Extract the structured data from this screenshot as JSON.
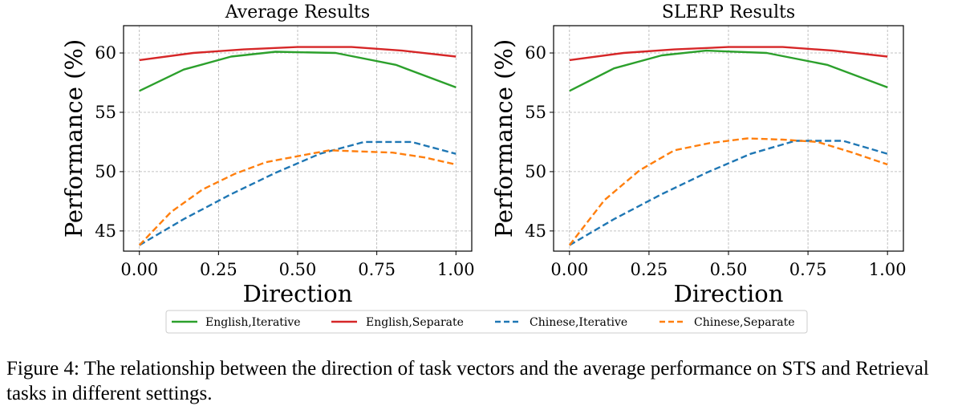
{
  "chart_data": [
    {
      "type": "line",
      "title": "Average Results",
      "xlabel": "Direction",
      "ylabel": "Performance (%)",
      "xlim": [
        -0.05,
        1.05
      ],
      "ylim": [
        43.3,
        62.3
      ],
      "xticks": [
        "0.00",
        "0.25",
        "0.50",
        "0.75",
        "1.00"
      ],
      "yticks": [
        "45",
        "50",
        "55",
        "60"
      ],
      "grid": true,
      "series": [
        {
          "name": "English,Iterative",
          "dash": "solid",
          "x": [
            0,
            0.14,
            0.29,
            0.43,
            0.62,
            0.81,
            1.0
          ],
          "y": [
            56.8,
            58.6,
            59.7,
            60.1,
            60.0,
            59.0,
            57.1
          ]
        },
        {
          "name": "English,Separate",
          "dash": "solid",
          "x": [
            0,
            0.17,
            0.33,
            0.5,
            0.67,
            0.83,
            1.0
          ],
          "y": [
            59.4,
            60.0,
            60.3,
            60.5,
            60.5,
            60.2,
            59.7
          ]
        },
        {
          "name": "Chinese,Iterative",
          "dash": "dashed",
          "x": [
            0,
            0.14,
            0.29,
            0.43,
            0.57,
            0.71,
            0.86,
            1.0
          ],
          "y": [
            43.8,
            46.0,
            48.1,
            49.9,
            51.5,
            52.5,
            52.5,
            51.5
          ]
        },
        {
          "name": "Chinese,Separate",
          "dash": "dashed",
          "x": [
            0,
            0.1,
            0.2,
            0.3,
            0.4,
            0.5,
            0.6,
            0.7,
            0.8,
            0.9,
            1.0
          ],
          "y": [
            43.8,
            46.6,
            48.5,
            49.8,
            50.8,
            51.3,
            51.8,
            51.7,
            51.6,
            51.2,
            50.6
          ]
        }
      ]
    },
    {
      "type": "line",
      "title": "SLERP Results",
      "xlabel": "Direction",
      "ylabel": "Performance (%)",
      "xlim": [
        -0.05,
        1.05
      ],
      "ylim": [
        43.3,
        62.3
      ],
      "xticks": [
        "0.00",
        "0.25",
        "0.50",
        "0.75",
        "1.00"
      ],
      "yticks": [
        "45",
        "50",
        "55",
        "60"
      ],
      "grid": true,
      "series": [
        {
          "name": "English,Iterative",
          "dash": "solid",
          "x": [
            0,
            0.14,
            0.29,
            0.43,
            0.62,
            0.81,
            1.0
          ],
          "y": [
            56.8,
            58.7,
            59.8,
            60.2,
            60.0,
            59.0,
            57.1
          ]
        },
        {
          "name": "English,Separate",
          "dash": "solid",
          "x": [
            0,
            0.17,
            0.33,
            0.5,
            0.67,
            0.83,
            1.0
          ],
          "y": [
            59.4,
            60.0,
            60.3,
            60.5,
            60.5,
            60.2,
            59.7
          ]
        },
        {
          "name": "Chinese,Iterative",
          "dash": "dashed",
          "x": [
            0,
            0.14,
            0.29,
            0.43,
            0.57,
            0.71,
            0.86,
            1.0
          ],
          "y": [
            43.8,
            46.0,
            48.1,
            49.9,
            51.5,
            52.6,
            52.6,
            51.5
          ]
        },
        {
          "name": "Chinese,Separate",
          "dash": "dashed",
          "x": [
            0,
            0.11,
            0.22,
            0.33,
            0.44,
            0.56,
            0.67,
            0.78,
            0.89,
            1.0
          ],
          "y": [
            43.8,
            47.6,
            50.1,
            51.8,
            52.4,
            52.8,
            52.7,
            52.5,
            51.6,
            50.6
          ]
        }
      ]
    }
  ],
  "legend": {
    "placement": "bottom-center",
    "items": [
      {
        "label": "English,Iterative",
        "color": "#2ca02c",
        "dash": "solid"
      },
      {
        "label": "English,Separate",
        "color": "#d62728",
        "dash": "solid"
      },
      {
        "label": "Chinese,Iterative",
        "color": "#1f77b4",
        "dash": "dashed"
      },
      {
        "label": "Chinese,Separate",
        "color": "#ff7f0e",
        "dash": "dashed"
      }
    ]
  },
  "series_colors": {
    "English,Iterative": "#2ca02c",
    "English,Separate": "#d62728",
    "Chinese,Iterative": "#1f77b4",
    "Chinese,Separate": "#ff7f0e"
  },
  "caption": "Figure 4: The relationship between the direction of task vectors and the average performance on STS and Retrieval tasks in different settings."
}
